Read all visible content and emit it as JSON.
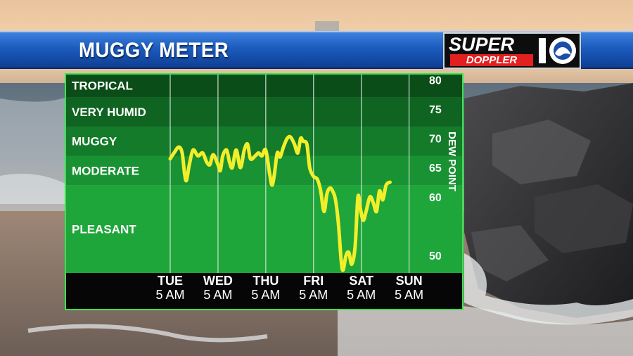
{
  "header": {
    "title": "MUGGY METER"
  },
  "logo": {
    "line1": "SUPER",
    "line2": "DOPPLER",
    "number": "10"
  },
  "colors": {
    "line": "#f2ef2a",
    "banner": "#1b5bbd",
    "doppler_red": "#e32020"
  },
  "chart_data": {
    "type": "line",
    "title": "",
    "ylabel": "DEW POINT",
    "ylim": [
      47,
      81
    ],
    "ticks": [
      80,
      75,
      70,
      65,
      60,
      50
    ],
    "x_range": [
      0,
      5.3
    ],
    "x_ticks": [
      {
        "x": 0,
        "day": "TUE",
        "time": "5 AM"
      },
      {
        "x": 1,
        "day": "WED",
        "time": "5 AM"
      },
      {
        "x": 2,
        "day": "THU",
        "time": "5 AM"
      },
      {
        "x": 3,
        "day": "FRI",
        "time": "5 AM"
      },
      {
        "x": 4,
        "day": "SAT",
        "time": "5 AM"
      },
      {
        "x": 5,
        "day": "SUN",
        "time": "5 AM"
      }
    ],
    "bands": [
      {
        "label": "TROPICAL",
        "from": 77,
        "to": 81,
        "color": "#0b4d18"
      },
      {
        "label": "VERY HUMID",
        "from": 72,
        "to": 77,
        "color": "#0e6420"
      },
      {
        "label": "MUGGY",
        "from": 67,
        "to": 72,
        "color": "#137b29"
      },
      {
        "label": "MODERATE",
        "from": 62,
        "to": 67,
        "color": "#189232"
      },
      {
        "label": "PLEASANT",
        "from": 47,
        "to": 62,
        "color": "#1ea63a"
      }
    ],
    "series": [
      {
        "points": [
          [
            0.0,
            66.5
          ],
          [
            0.08,
            67.5
          ],
          [
            0.18,
            68.5
          ],
          [
            0.25,
            67.5
          ],
          [
            0.3,
            64.0
          ],
          [
            0.34,
            62.8
          ],
          [
            0.4,
            65.5
          ],
          [
            0.48,
            68.0
          ],
          [
            0.58,
            67.0
          ],
          [
            0.68,
            67.5
          ],
          [
            0.76,
            66.0
          ],
          [
            0.83,
            65.5
          ],
          [
            0.9,
            67.2
          ],
          [
            1.0,
            65.5
          ],
          [
            1.05,
            64.5
          ],
          [
            1.1,
            67.0
          ],
          [
            1.18,
            68.0
          ],
          [
            1.24,
            66.0
          ],
          [
            1.3,
            65.0
          ],
          [
            1.38,
            68.0
          ],
          [
            1.47,
            65.0
          ],
          [
            1.55,
            68.0
          ],
          [
            1.62,
            69.0
          ],
          [
            1.68,
            66.5
          ],
          [
            1.78,
            67.0
          ],
          [
            1.85,
            67.5
          ],
          [
            1.92,
            67.0
          ],
          [
            2.0,
            68.0
          ],
          [
            2.08,
            64.0
          ],
          [
            2.13,
            62.0
          ],
          [
            2.18,
            63.8
          ],
          [
            2.24,
            67.5
          ],
          [
            2.3,
            66.8
          ],
          [
            2.37,
            68.5
          ],
          [
            2.45,
            70.0
          ],
          [
            2.52,
            70.2
          ],
          [
            2.6,
            69.0
          ],
          [
            2.67,
            67.5
          ],
          [
            2.73,
            70.0
          ],
          [
            2.78,
            69.5
          ],
          [
            2.86,
            69.0
          ],
          [
            2.92,
            65.0
          ],
          [
            3.0,
            63.5
          ],
          [
            3.08,
            63.0
          ],
          [
            3.15,
            61.0
          ],
          [
            3.22,
            57.5
          ],
          [
            3.28,
            60.5
          ],
          [
            3.34,
            61.5
          ],
          [
            3.4,
            61.0
          ],
          [
            3.46,
            59.5
          ],
          [
            3.52,
            55.5
          ],
          [
            3.58,
            49.0
          ],
          [
            3.62,
            47.5
          ],
          [
            3.68,
            50.0
          ],
          [
            3.74,
            50.5
          ],
          [
            3.8,
            48.5
          ],
          [
            3.87,
            51.5
          ],
          [
            3.93,
            60.0
          ],
          [
            3.98,
            58.0
          ],
          [
            4.04,
            56.0
          ],
          [
            4.1,
            57.5
          ],
          [
            4.18,
            60.0
          ],
          [
            4.25,
            59.0
          ],
          [
            4.32,
            57.5
          ],
          [
            4.38,
            61.0
          ],
          [
            4.45,
            59.5
          ],
          [
            4.52,
            62.0
          ],
          [
            4.6,
            62.5
          ]
        ]
      }
    ]
  }
}
